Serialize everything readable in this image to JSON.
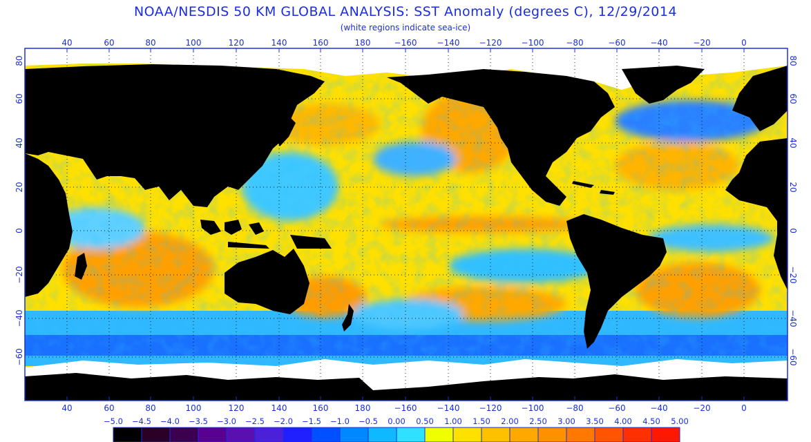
{
  "title": "NOAA/NESDIS 50 KM GLOBAL ANALYSIS: SST Anomaly (degrees C), 12/29/2014",
  "subtitle": "(white regions indicate sea-ice)",
  "lon_labels": [
    "40",
    "60",
    "80",
    "100",
    "120",
    "140",
    "160",
    "180",
    "−160",
    "−140",
    "−120",
    "−100",
    "−80",
    "−60",
    "−40",
    "−20",
    "0"
  ],
  "lat_labels": [
    "80",
    "60",
    "40",
    "20",
    "0",
    "−20",
    "−40",
    "−60"
  ],
  "colorbar": {
    "labels": [
      "−5.0",
      "−4.5",
      "−4.0",
      "−3.5",
      "−3.0",
      "−2.5",
      "−2.0",
      "−1.5",
      "−1.0",
      "−0.5",
      "0.00",
      "0.50",
      "1.00",
      "1.50",
      "2.00",
      "2.50",
      "3.00",
      "3.50",
      "4.00",
      "4.50",
      "5.00"
    ],
    "colors": [
      "#000000",
      "#2a0028",
      "#3c0050",
      "#5a0090",
      "#5a10b0",
      "#4a20d8",
      "#2020ff",
      "#0050ff",
      "#0088ff",
      "#10b8ff",
      "#30e0ff",
      "#f0ff00",
      "#ffe000",
      "#ffc000",
      "#ffa800",
      "#ff9000",
      "#ff7800",
      "#ff5400",
      "#ff3000",
      "#ff1800"
    ]
  },
  "colors": {
    "label_blue": "#1a2ee0",
    "land": "#000000",
    "sea_ice": "#ffffff",
    "border": "#1a2ee0",
    "grid": "#000000"
  }
}
